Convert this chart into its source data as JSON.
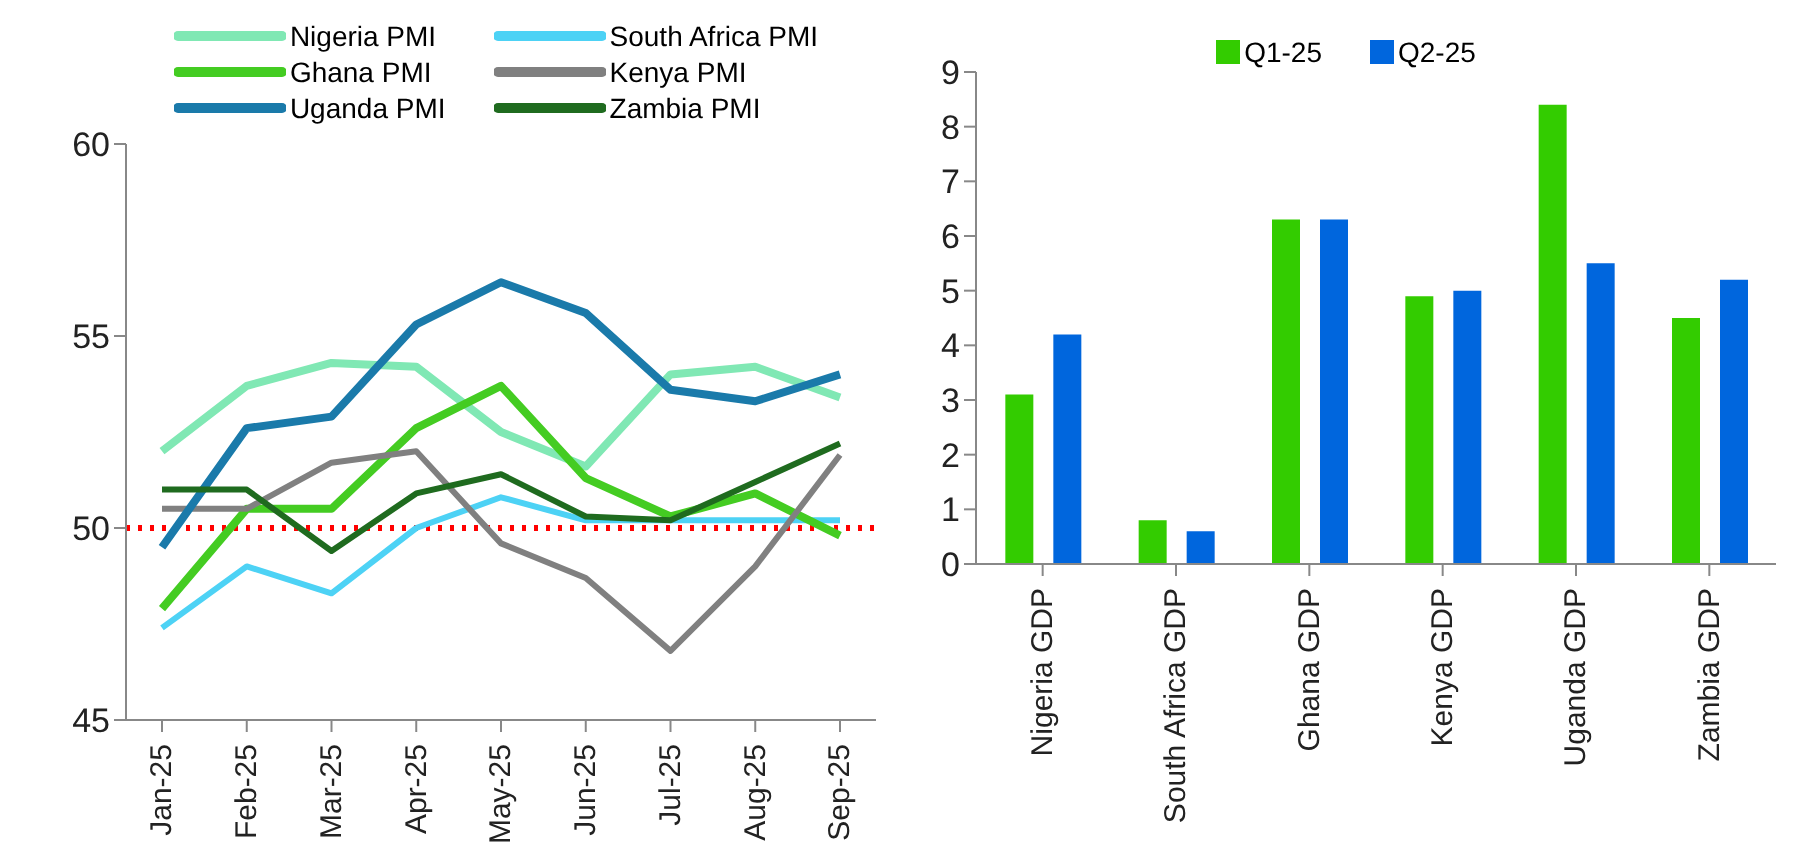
{
  "chart_data": [
    {
      "type": "line",
      "categories": [
        "Jan-25",
        "Feb-25",
        "Mar-25",
        "Apr-25",
        "May-25",
        "Jun-25",
        "Jul-25",
        "Aug-25",
        "Sep-25"
      ],
      "series": [
        {
          "name": "Nigeria PMI",
          "color": "#80e8b4",
          "values": [
            52.0,
            53.7,
            54.3,
            54.2,
            52.5,
            51.6,
            54.0,
            54.2,
            53.4
          ]
        },
        {
          "name": "South Africa PMI",
          "color": "#4dd2f5",
          "values": [
            47.4,
            49.0,
            48.3,
            50.0,
            50.8,
            50.2,
            50.2,
            50.2,
            50.2
          ]
        },
        {
          "name": "Ghana PMI",
          "color": "#44cc22",
          "values": [
            47.9,
            50.5,
            50.5,
            52.6,
            53.7,
            51.3,
            50.3,
            50.9,
            49.8
          ]
        },
        {
          "name": "Kenya PMI",
          "color": "#808080",
          "values": [
            50.5,
            50.5,
            51.7,
            52.0,
            49.6,
            48.7,
            46.8,
            49.0,
            51.9
          ]
        },
        {
          "name": "Uganda PMI",
          "color": "#1a7aaa",
          "values": [
            49.5,
            52.6,
            52.9,
            55.3,
            56.4,
            55.6,
            53.6,
            53.3,
            54.0
          ]
        },
        {
          "name": "Zambia PMI",
          "color": "#1f6b1f",
          "values": [
            51.0,
            51.0,
            49.4,
            50.9,
            51.4,
            50.3,
            50.2,
            51.2,
            52.2
          ]
        }
      ],
      "ylim": [
        45,
        60
      ],
      "yticks": [
        45,
        50,
        55,
        60
      ],
      "ref_lines": [
        {
          "axis": "y",
          "value": 50,
          "color": "#ff0000",
          "line_style": "dotted"
        }
      ],
      "legend": "top",
      "grid": false
    },
    {
      "type": "bar",
      "categories": [
        "Nigeria GDP",
        "South Africa GDP",
        "Ghana GDP",
        "Kenya GDP",
        "Uganda GDP",
        "Zambia GDP"
      ],
      "series": [
        {
          "name": "Q1-25",
          "color": "#33cc00",
          "values": [
            3.1,
            0.8,
            6.3,
            4.9,
            8.4,
            4.5
          ]
        },
        {
          "name": "Q2-25",
          "color": "#0066dd",
          "values": [
            4.2,
            0.6,
            6.3,
            5.0,
            5.5,
            5.2
          ]
        }
      ],
      "ylim": [
        0,
        9
      ],
      "yticks": [
        0,
        1,
        2,
        3,
        4,
        5,
        6,
        7,
        8,
        9
      ],
      "legend": "top",
      "grid": false
    }
  ]
}
